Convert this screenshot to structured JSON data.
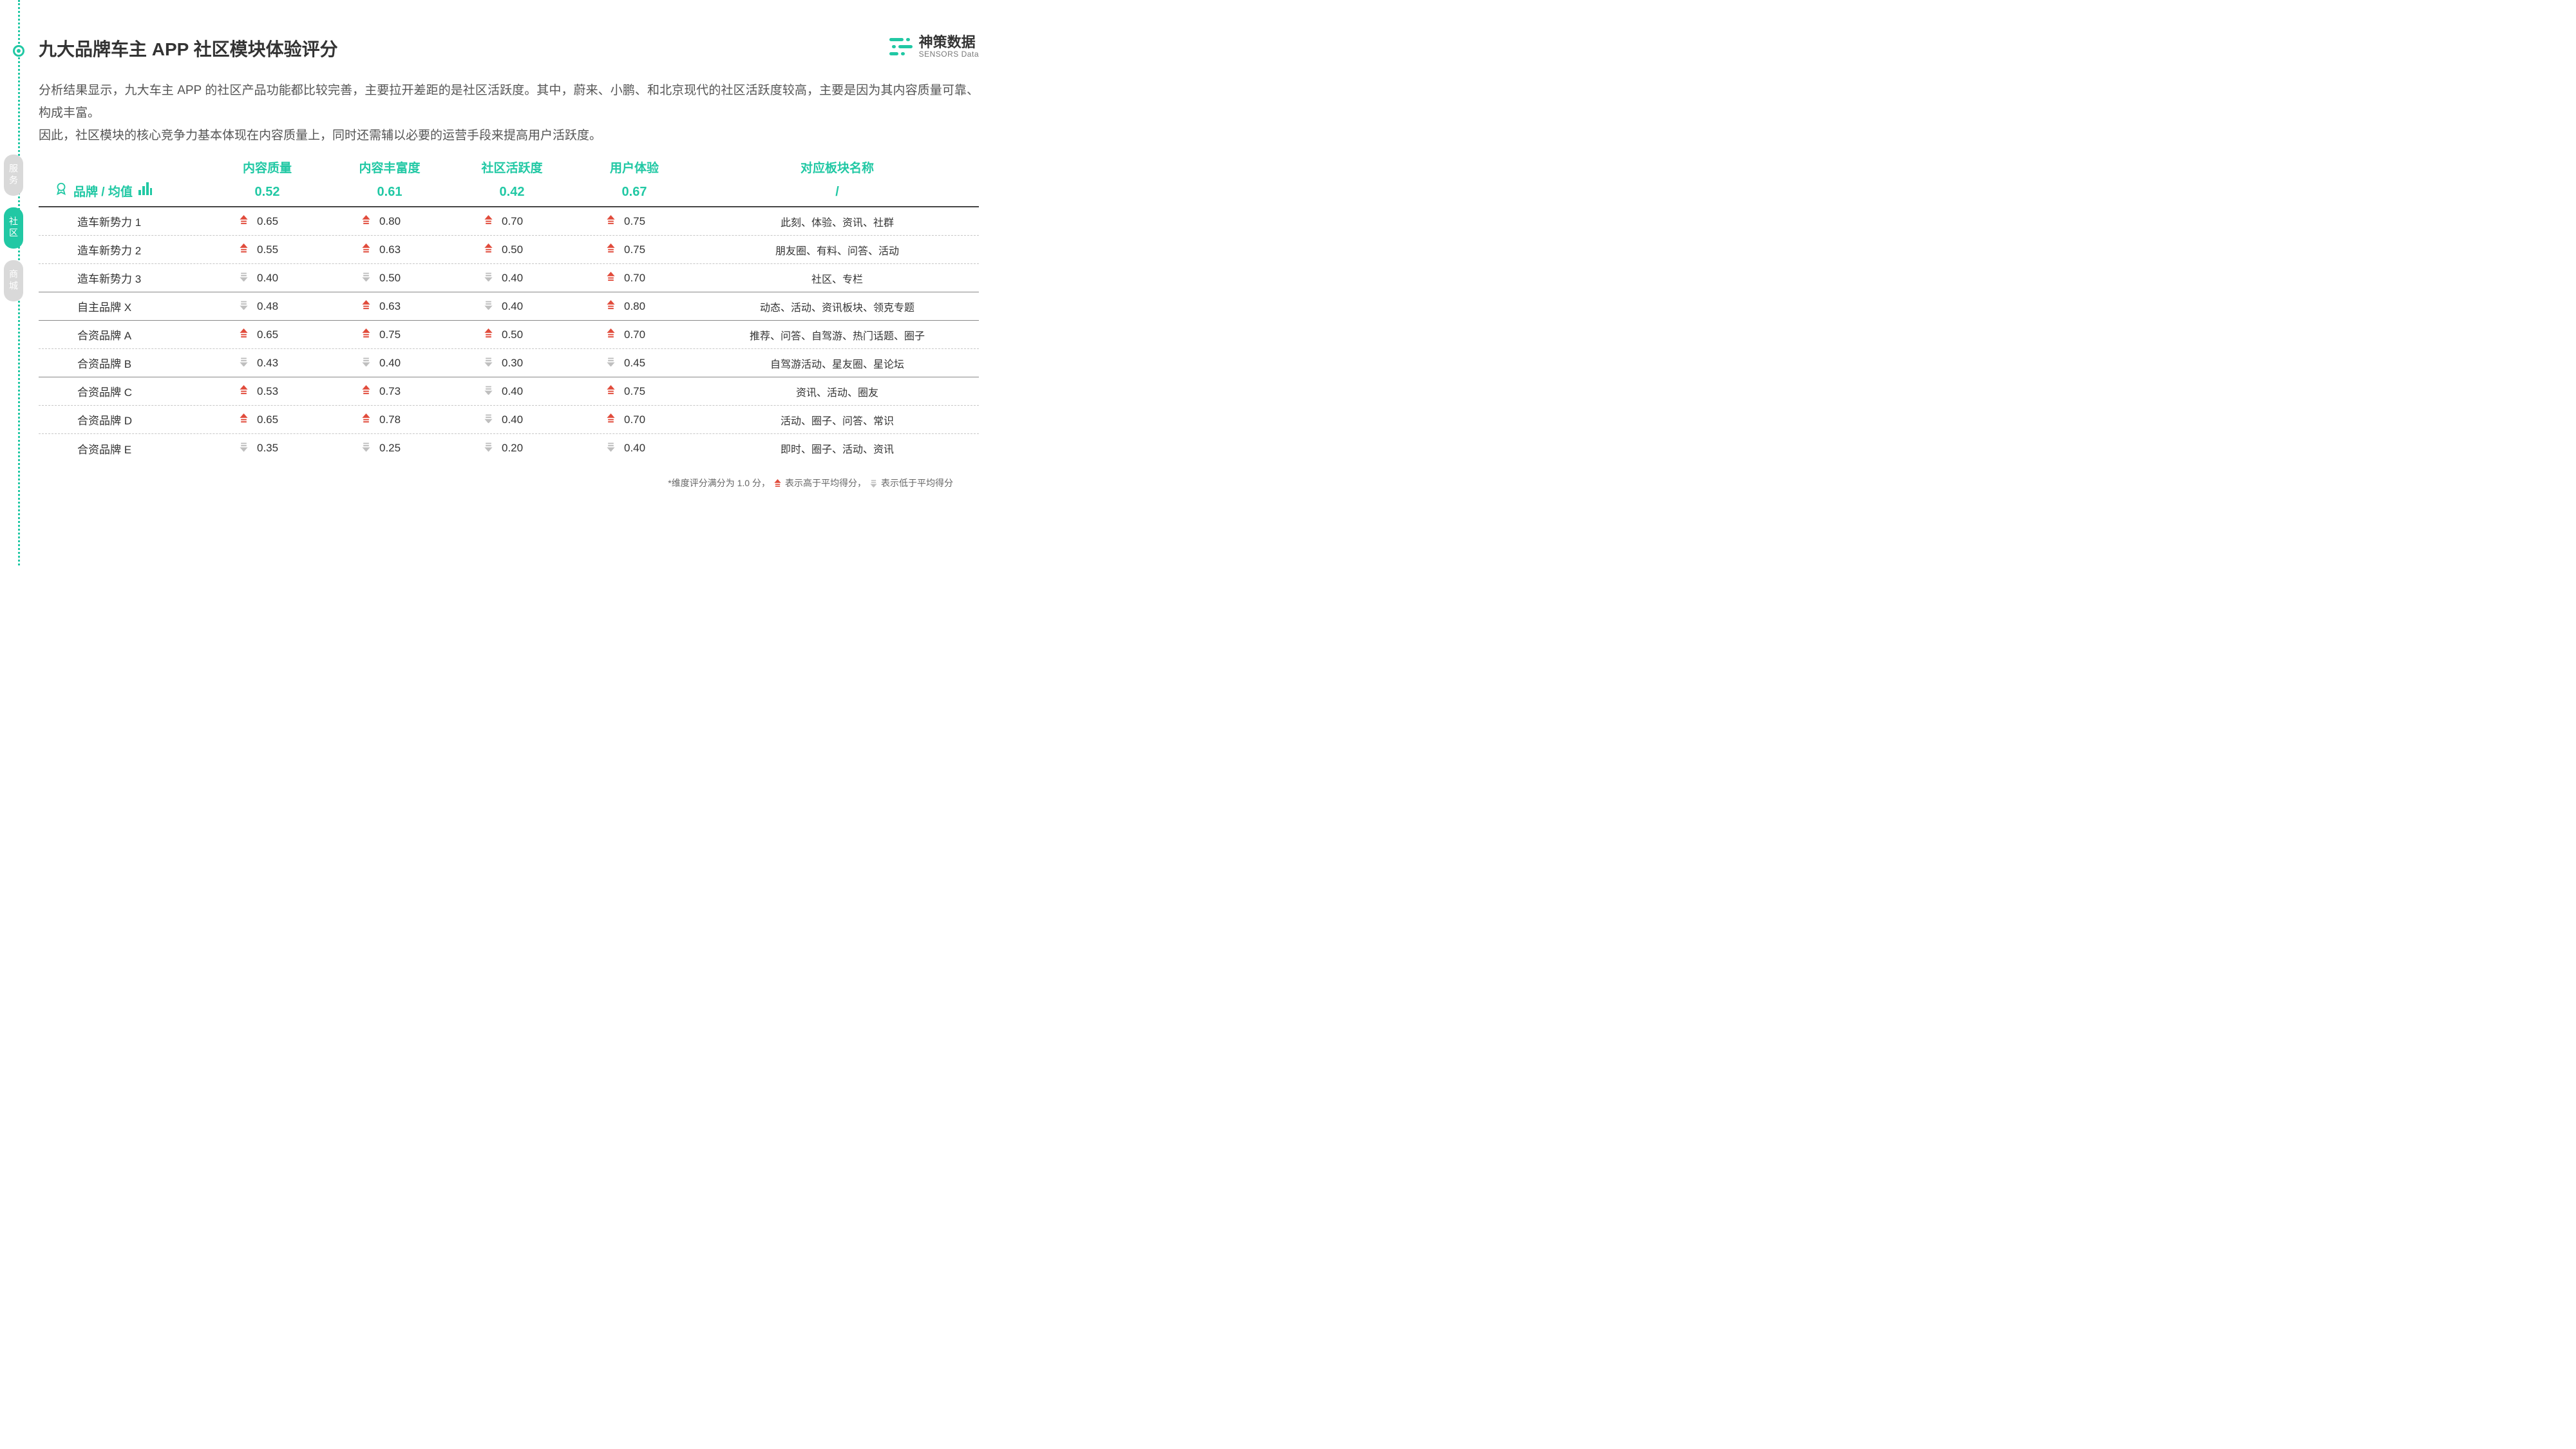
{
  "colors": {
    "accent": "#21c8a4",
    "up": "#e14b3b",
    "down": "#bfbfbf",
    "text": "#333333",
    "muted": "#666666",
    "border_solid": "#444444",
    "border_dash": "#c7c7c7"
  },
  "logo": {
    "zh": "神策数据",
    "en": "SENSORS Data"
  },
  "title": "九大品牌车主 APP 社区模块体验评分",
  "desc_line1": "分析结果显示，九大车主 APP 的社区产品功能都比较完善，主要拉开差距的是社区活跃度。其中，蔚来、小鹏、和北京现代的社区活跃度较高，主要是因为其内容质量可靠、构成丰富。",
  "desc_line2": "因此，社区模块的核心竞争力基本体现在内容质量上，同时还需辅以必要的运营手段来提高用户活跃度。",
  "side_tabs": [
    {
      "label": "服务",
      "active": false
    },
    {
      "label": "社区",
      "active": true
    },
    {
      "label": "商城",
      "active": false
    }
  ],
  "table": {
    "brand_header": "品牌 / 均值",
    "section_header": "对应板块名称",
    "section_slash": "/",
    "metrics": [
      {
        "name": "内容质量",
        "avg": "0.52"
      },
      {
        "name": "内容丰富度",
        "avg": "0.61"
      },
      {
        "name": "社区活跃度",
        "avg": "0.42"
      },
      {
        "name": "用户体验",
        "avg": "0.67"
      }
    ],
    "rows": [
      {
        "brand": "造车新势力 1",
        "vals": [
          [
            "up",
            "0.65"
          ],
          [
            "up",
            "0.80"
          ],
          [
            "up",
            "0.70"
          ],
          [
            "up",
            "0.75"
          ]
        ],
        "section": "此刻、体验、资讯、社群",
        "group_end": false
      },
      {
        "brand": "造车新势力 2",
        "vals": [
          [
            "up",
            "0.55"
          ],
          [
            "up",
            "0.63"
          ],
          [
            "up",
            "0.50"
          ],
          [
            "up",
            "0.75"
          ]
        ],
        "section": "朋友圈、有料、问答、活动",
        "group_end": false
      },
      {
        "brand": "造车新势力 3",
        "vals": [
          [
            "down",
            "0.40"
          ],
          [
            "down",
            "0.50"
          ],
          [
            "down",
            "0.40"
          ],
          [
            "up",
            "0.70"
          ]
        ],
        "section": "社区、专栏",
        "group_end": true
      },
      {
        "brand": "自主品牌 X",
        "vals": [
          [
            "down",
            "0.48"
          ],
          [
            "up",
            "0.63"
          ],
          [
            "down",
            "0.40"
          ],
          [
            "up",
            "0.80"
          ]
        ],
        "section": "动态、活动、资讯板块、领克专题",
        "group_end": true
      },
      {
        "brand": "合资品牌 A",
        "vals": [
          [
            "up",
            "0.65"
          ],
          [
            "up",
            "0.75"
          ],
          [
            "up",
            "0.50"
          ],
          [
            "up",
            "0.70"
          ]
        ],
        "section": "推荐、问答、自驾游、热门话题、圈子",
        "group_end": false
      },
      {
        "brand": "合资品牌 B",
        "vals": [
          [
            "down",
            "0.43"
          ],
          [
            "down",
            "0.40"
          ],
          [
            "down",
            "0.30"
          ],
          [
            "down",
            "0.45"
          ]
        ],
        "section": "自驾游活动、星友圈、星论坛",
        "group_end": true
      },
      {
        "brand": "合资品牌 C",
        "vals": [
          [
            "up",
            "0.53"
          ],
          [
            "up",
            "0.73"
          ],
          [
            "down",
            "0.40"
          ],
          [
            "up",
            "0.75"
          ]
        ],
        "section": "资讯、活动、圈友",
        "group_end": false
      },
      {
        "brand": "合资品牌 D",
        "vals": [
          [
            "up",
            "0.65"
          ],
          [
            "up",
            "0.78"
          ],
          [
            "down",
            "0.40"
          ],
          [
            "up",
            "0.70"
          ]
        ],
        "section": "活动、圈子、问答、常识",
        "group_end": false
      },
      {
        "brand": "合资品牌 E",
        "vals": [
          [
            "down",
            "0.35"
          ],
          [
            "down",
            "0.25"
          ],
          [
            "down",
            "0.20"
          ],
          [
            "down",
            "0.40"
          ]
        ],
        "section": "即时、圈子、活动、资讯",
        "group_end": false
      }
    ]
  },
  "footnote": {
    "prefix": "*维度评分满分为 1.0 分，",
    "up_text": "表示高于平均得分，",
    "down_text": "表示低于平均得分"
  }
}
